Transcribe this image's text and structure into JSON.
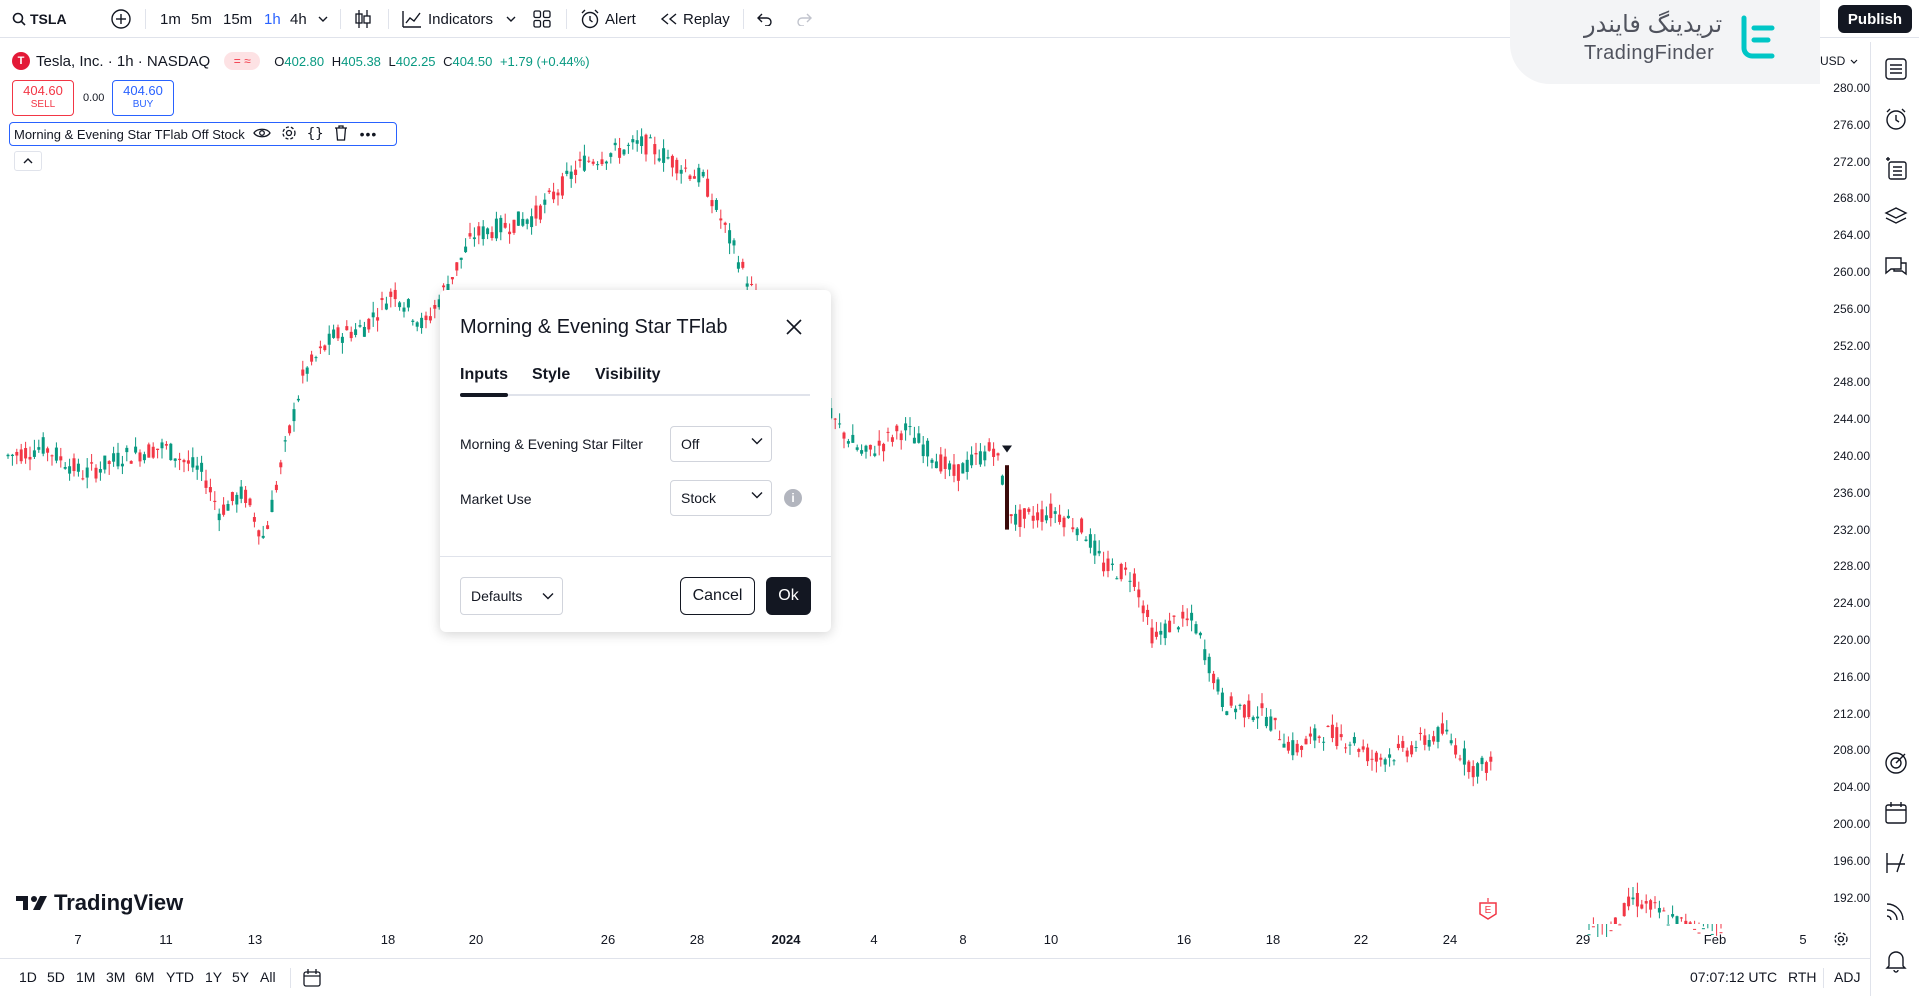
{
  "toolbar": {
    "symbol": "TSLA",
    "intervals": [
      "1m",
      "5m",
      "15m",
      "1h",
      "4h"
    ],
    "active_interval": "1h",
    "indicators_label": "Indicators",
    "alert_label": "Alert",
    "replay_label": "Replay",
    "publish_label": "Publish"
  },
  "watermark": {
    "persian_text": "تریدینگ فایندر",
    "latin_text": "TradingFinder"
  },
  "legend": {
    "title": "Tesla, Inc. · 1h · NASDAQ",
    "ohlc": {
      "o_label": "O",
      "o": "402.80",
      "h_label": "H",
      "h": "405.38",
      "l_label": "L",
      "l": "402.25",
      "c_label": "C",
      "c": "404.50",
      "change": "+1.79 (+0.44%)"
    },
    "sell_price": "404.60",
    "sell_label": "SELL",
    "spread": "0.00",
    "buy_price": "404.60",
    "buy_label": "BUY",
    "indicator_label": "Morning & Evening Star TFlab Off Stock"
  },
  "currency": "USD",
  "price_axis": [
    "280.00",
    "276.00",
    "272.00",
    "268.00",
    "264.00",
    "260.00",
    "256.00",
    "252.00",
    "248.00",
    "244.00",
    "240.00",
    "236.00",
    "232.00",
    "228.00",
    "224.00",
    "220.00",
    "216.00",
    "212.00",
    "208.00",
    "204.00",
    "200.00",
    "196.00",
    "192.00"
  ],
  "time_axis": [
    "7",
    "11",
    "13",
    "18",
    "20",
    "26",
    "28",
    "2024",
    "4",
    "8",
    "10",
    "16",
    "18",
    "22",
    "24",
    "29",
    "Feb",
    "5"
  ],
  "brand": "TradingView",
  "dialog": {
    "title": "Morning & Evening Star TFlab",
    "tabs": [
      "Inputs",
      "Style",
      "Visibility"
    ],
    "active_tab": "Inputs",
    "fields": [
      {
        "label": "Morning & Evening Star Filter",
        "value": "Off"
      },
      {
        "label": "Market Use",
        "value": "Stock"
      }
    ],
    "defaults_label": "Defaults",
    "cancel_label": "Cancel",
    "ok_label": "Ok"
  },
  "bottombar": {
    "ranges": [
      "1D",
      "5D",
      "1M",
      "3M",
      "6M",
      "YTD",
      "1Y",
      "5Y",
      "All"
    ],
    "time": "07:07:12 UTC",
    "session": "RTH",
    "adj": "ADJ"
  },
  "colors": {
    "up": "#089981",
    "down": "#f23645",
    "accent": "#2962ff",
    "dark": "#131722"
  }
}
